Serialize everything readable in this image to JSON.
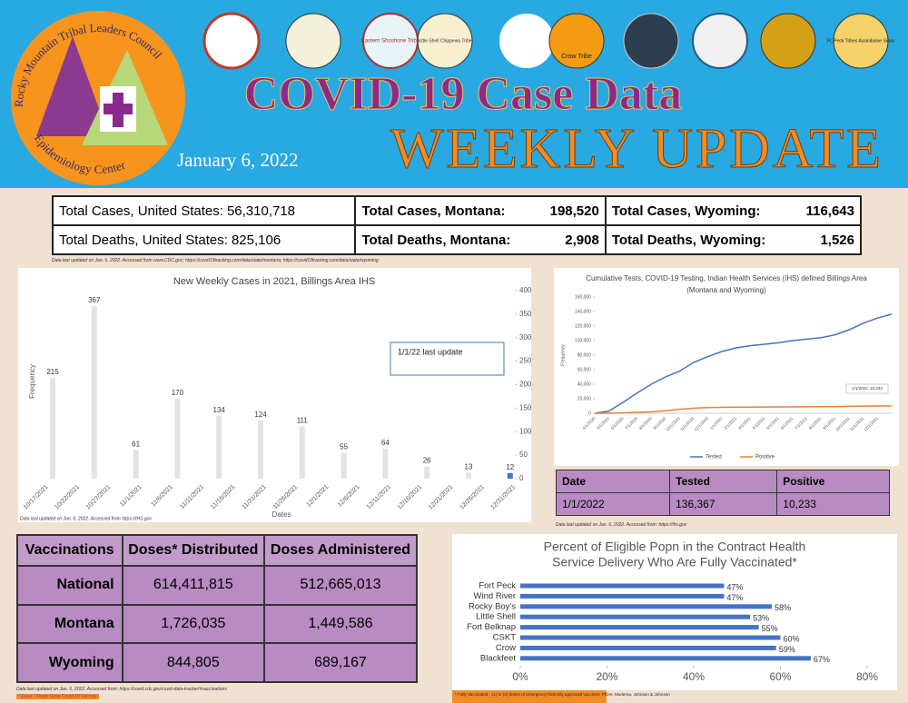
{
  "header": {
    "title": "COVID-19 Case Data",
    "subtitle": "WEEKLY UPDATE",
    "date": "January 6, 2022",
    "logo_top": "Rocky Mountain Tribal Leaders Council",
    "logo_bottom": "Epidemiology Center",
    "seals": [
      "Eastern Shoshone Tribe",
      "Little Shell Chippewa Tribe",
      "Crow Tribe",
      "Ft. Peck Tribes Assiniboine Sioux"
    ]
  },
  "summary": {
    "rows": [
      [
        {
          "label": "Total Cases, United States:",
          "value": "56,310,718"
        },
        {
          "label": "Total Cases, Montana:",
          "value": "198,520"
        },
        {
          "label": "Total Cases, Wyoming:",
          "value": "116,643"
        }
      ],
      [
        {
          "label": "Total Deaths, United States:",
          "value": "825,106"
        },
        {
          "label": "Total Deaths, Montana:",
          "value": "2,908"
        },
        {
          "label": "Total Deaths, Wyoming:",
          "value": "1,526"
        }
      ]
    ],
    "source": "Data last updated on Jan. 6, 2022. Accessed from www.CDC.gov; https://covid19tracking.com/data/state/montana; https://covid19tracking.com/data/state/wyoming"
  },
  "chart_data": [
    {
      "type": "bar",
      "title": "New Weekly Cases in 2021, Billings Area IHS",
      "categories": [
        null,
        null,
        null,
        null,
        null,
        null,
        null,
        null,
        null,
        null,
        null,
        null
      ],
      "values": [
        215,
        367,
        61,
        170,
        134,
        124,
        111,
        55,
        64,
        26,
        13,
        12
      ],
      "colors": [
        "#e3e3e3",
        "#e3e3e3",
        "#e3e3e3",
        "#e3e3e3",
        "#e3e3e3",
        "#e3e3e3",
        "#e3e3e3",
        "#e3e3e3",
        "#e3e3e3",
        "#e3e3e3",
        "#e3e3e3",
        "#4472c4"
      ],
      "xtick_labels": [
        "10/17/2021",
        "10/22/2021",
        "10/27/2021",
        "11/1/2021",
        "11/6/2021",
        "11/11/2021",
        "11/16/2021",
        "11/21/2021",
        "11/26/2021",
        "12/1/2021",
        "12/6/2021",
        "12/11/2021",
        "12/16/2021",
        "12/21/2021",
        "12/26/2021",
        "12/31/2021"
      ],
      "ylim": [
        0,
        400
      ],
      "yticks": [
        0,
        50,
        100,
        150,
        200,
        250,
        300,
        350,
        400
      ],
      "y_label": "Frequency",
      "x_label": "Dates",
      "annotation": "1/1/22  last update",
      "source": "Data last updated on Jan. 6, 2022. Accessed from https://IHS.gov"
    },
    {
      "type": "line",
      "title": [
        "Cumulative Tests, COVID-19 Testing, Indian Health Services (IHS) defined Billings Area",
        "(Montana and Wyoming)"
      ],
      "categories": [
        "4/1/2020",
        "5/1/2020",
        "6/1/2020",
        "7/1/2020",
        "8/1/2020",
        "9/1/2020",
        "10/1/2020",
        "11/1/2020",
        "12/1/2020",
        "1/1/2021",
        "2/1/2021",
        "3/1/2021",
        "4/1/2021",
        "5/1/2021",
        "6/1/2021",
        "7/1/2021",
        "8/1/2021",
        "9/1/2021",
        "10/1/2021",
        "11/1/2021",
        "12/1/2021",
        null
      ],
      "series": [
        {
          "name": "Tested",
          "color": "#4472c4",
          "values": [
            0,
            3000,
            15000,
            28000,
            40000,
            50000,
            58000,
            70000,
            78000,
            85000,
            90000,
            93000,
            95000,
            97000,
            100000,
            102000,
            104000,
            108000,
            115000,
            124000,
            131000,
            136367
          ]
        },
        {
          "name": "Positive",
          "color": "#ed7d31",
          "values": [
            0,
            200,
            600,
            1200,
            2000,
            3500,
            5500,
            7000,
            7800,
            8200,
            8400,
            8500,
            8600,
            8700,
            8800,
            8900,
            9000,
            9200,
            9500,
            9800,
            10000,
            10233
          ]
        }
      ],
      "ylim": [
        0,
        160000
      ],
      "yticks": [
        {
          "value": 0,
          "label": "0"
        },
        {
          "value": 20000,
          "label": "20,000"
        },
        {
          "value": 40000,
          "label": "40,000"
        },
        {
          "value": 60000,
          "label": "60,000"
        },
        {
          "value": 80000,
          "label": "80,000"
        },
        {
          "value": 100000,
          "label": "100,000"
        },
        {
          "value": 120000,
          "label": "120,000"
        },
        {
          "value": 140000,
          "label": "140,000"
        },
        {
          "value": 160000,
          "label": "160,000"
        }
      ],
      "y_label": "Frequency",
      "annotation": "1/1/2022, 10,233",
      "legend": "bottom"
    },
    {
      "type": "barh",
      "title": [
        "Percent of Eligible Popn in the Contract Health",
        "Service Delivery Who Are Fully Vaccinated*"
      ],
      "categories": [
        "Fort Peck",
        "Wind River",
        "Rocky Boy's",
        "Little Shell",
        "Fort Belknap",
        "CSKT",
        "Crow",
        "Blackfeet"
      ],
      "values": [
        47,
        47,
        58,
        53,
        55,
        60,
        59,
        67
      ],
      "value_labels": [
        "47%",
        "47%",
        "58%",
        "53%",
        "55%",
        "60%",
        "59%",
        "67%"
      ],
      "color": "#4472c4",
      "xlim": [
        0,
        80
      ],
      "xticks": [
        {
          "value": 0,
          "label": "0%"
        },
        {
          "value": 20,
          "label": "20%"
        },
        {
          "value": 40,
          "label": "40%"
        },
        {
          "value": 60,
          "label": "60%"
        },
        {
          "value": 80,
          "label": "80%"
        }
      ],
      "footnote": "* Fully Vaccinated - (1) or (2) doses of emergency federally approved vaccines: Pfizer, Moderna, Johnson & Johnson"
    }
  ],
  "tested_table": {
    "header": [
      "Date",
      "Tested",
      "Positive"
    ],
    "rows": [
      [
        "1/1/2022",
        "136,367",
        "10,233"
      ]
    ],
    "source": "Data last updated on Jan. 6, 2022. Accessed from: https://ihs.gov"
  },
  "vaccination_table": {
    "header": [
      "Vaccinations",
      "Doses* Distributed",
      "Doses Administered"
    ],
    "rows": [
      [
        "National",
        "614,411,815",
        "512,665,013"
      ],
      [
        "Montana",
        "1,726,035",
        "1,449,586"
      ],
      [
        "Wyoming",
        "844,805",
        "689,167"
      ]
    ],
    "source": "Data last updated on Jan. 6, 2022. Accessed from: https://covid.cdc.gov/covid-data-tracker/#vaccinations",
    "note": "* Dose - Single Dose Covid-19 Vaccine"
  }
}
